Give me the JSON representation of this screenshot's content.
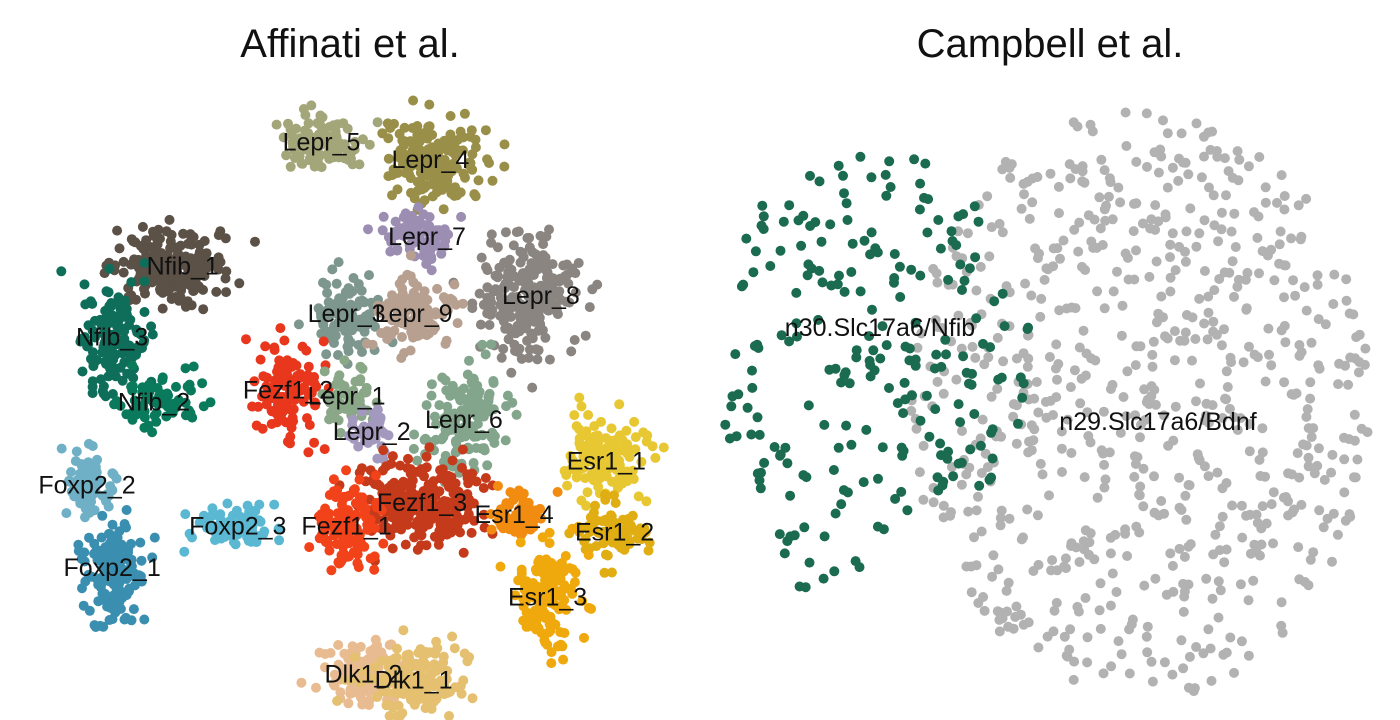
{
  "chart_data": [
    {
      "type": "scatter",
      "title": "Affinati et al.",
      "grid": false,
      "axes": "none",
      "clusters": [
        {
          "name": "Lepr_5",
          "color": "#a3a679",
          "x": 0.31,
          "y": 0.84
        },
        {
          "name": "Lepr_4",
          "color": "#9a8f49",
          "x": 0.44,
          "y": 0.81
        },
        {
          "name": "Lepr_7",
          "color": "#9c8db2",
          "x": 0.43,
          "y": 0.68
        },
        {
          "name": "Nfib_1",
          "color": "#5b5147",
          "x": 0.13,
          "y": 0.63
        },
        {
          "name": "Lepr_8",
          "color": "#8a8580",
          "x": 0.56,
          "y": 0.58
        },
        {
          "name": "Lepr_3",
          "color": "#7d968e",
          "x": 0.34,
          "y": 0.55
        },
        {
          "name": "Lepr_9",
          "color": "#b8a091",
          "x": 0.42,
          "y": 0.55
        },
        {
          "name": "Nfib_3",
          "color": "#0e6e5a",
          "x": 0.06,
          "y": 0.51
        },
        {
          "name": "Fezf1_2",
          "color": "#e8371c",
          "x": 0.27,
          "y": 0.42
        },
        {
          "name": "Lepr_1",
          "color": "#8aa888",
          "x": 0.34,
          "y": 0.41
        },
        {
          "name": "Nfib_2",
          "color": "#0a7a5c",
          "x": 0.11,
          "y": 0.4
        },
        {
          "name": "Lepr_6",
          "color": "#82a58c",
          "x": 0.48,
          "y": 0.37
        },
        {
          "name": "Lepr_2",
          "color": "#a398bd",
          "x": 0.37,
          "y": 0.35
        },
        {
          "name": "Esr1_1",
          "color": "#e8c832",
          "x": 0.65,
          "y": 0.3
        },
        {
          "name": "Foxp2_2",
          "color": "#6fb0c6",
          "x": 0.03,
          "y": 0.26
        },
        {
          "name": "Fezf1_3",
          "color": "#c53a1a",
          "x": 0.43,
          "y": 0.23
        },
        {
          "name": "Esr1_4",
          "color": "#f28c10",
          "x": 0.54,
          "y": 0.21
        },
        {
          "name": "Esr1_2",
          "color": "#e0ad12",
          "x": 0.66,
          "y": 0.18
        },
        {
          "name": "Fezf1_1",
          "color": "#f2421a",
          "x": 0.34,
          "y": 0.19
        },
        {
          "name": "Foxp2_3",
          "color": "#5ab8d2",
          "x": 0.21,
          "y": 0.19
        },
        {
          "name": "Foxp2_1",
          "color": "#3a8fb0",
          "x": 0.06,
          "y": 0.12
        },
        {
          "name": "Esr1_3",
          "color": "#f0a90c",
          "x": 0.58,
          "y": 0.07
        },
        {
          "name": "Dlk1_2",
          "color": "#e8bc90",
          "x": 0.36,
          "y": -0.06
        },
        {
          "name": "Dlk1_1",
          "color": "#e4c070",
          "x": 0.42,
          "y": -0.07
        }
      ]
    },
    {
      "type": "scatter",
      "title": "Campbell et al.",
      "grid": false,
      "axes": "none",
      "clusters": [
        {
          "name": "n30.Slc17a6/Nfib",
          "color": "#1a6b50",
          "x": 0.12,
          "y": 0.52
        },
        {
          "name": "n29.Slc17a6/Bdnf",
          "color": "#b2b2b2",
          "x": 0.52,
          "y": 0.38
        }
      ]
    }
  ]
}
